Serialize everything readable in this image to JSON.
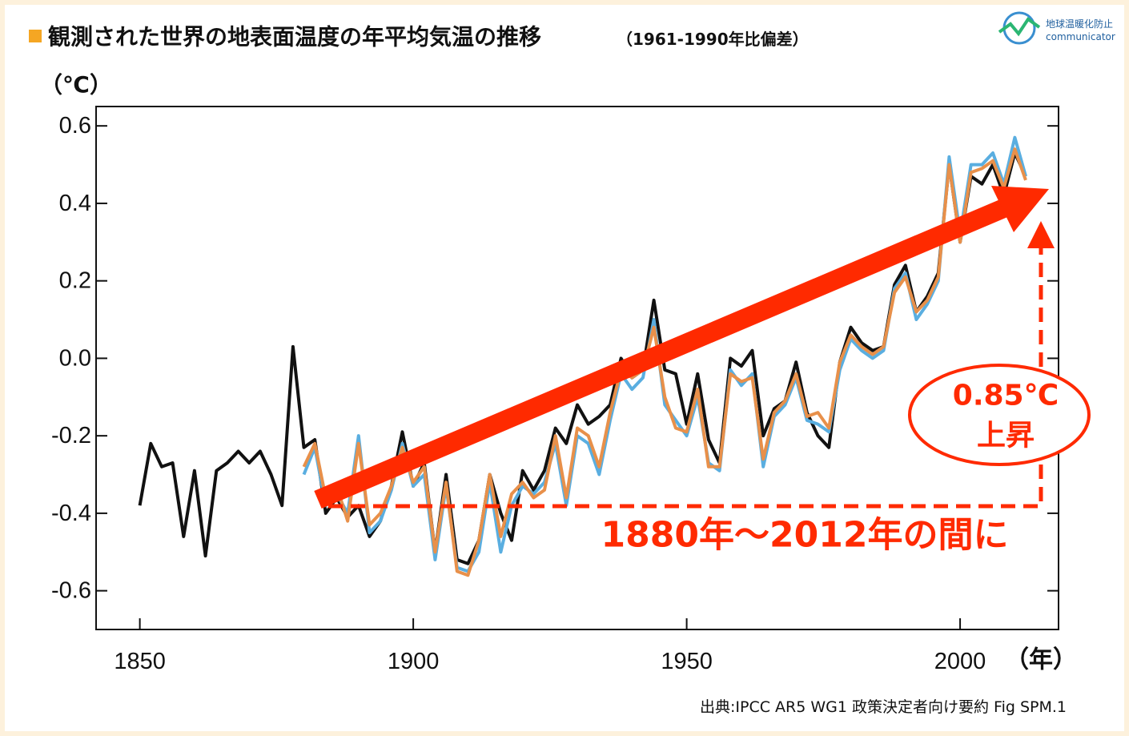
{
  "chart_data": {
    "type": "line",
    "title": "観測された世界の地表面温度の年平均気温の推移",
    "subtitle": "（1961-1990年比偏差）",
    "y_label": "（℃）",
    "x_label": "（年）",
    "source": "出典:IPCC AR5 WG1 政策決定者向け要約 Fig SPM.1",
    "annotations": [
      "0.85℃",
      "上昇",
      "1880年～2012年の間に"
    ],
    "xlim": [
      1842,
      2018
    ],
    "ylim": [
      -0.7,
      0.65
    ],
    "xticks": [
      1850,
      1900,
      1950,
      2000
    ],
    "yticks": [
      -0.6,
      -0.4,
      -0.2,
      {
        "value": 0,
        "label": "0.0"
      },
      0.2,
      0.4,
      0.6
    ],
    "x": [
      1850,
      1852,
      1854,
      1856,
      1858,
      1860,
      1862,
      1864,
      1866,
      1868,
      1870,
      1872,
      1874,
      1876,
      1878,
      1880,
      1882,
      1884,
      1886,
      1888,
      1890,
      1892,
      1894,
      1896,
      1898,
      1900,
      1902,
      1904,
      1906,
      1908,
      1910,
      1912,
      1914,
      1916,
      1918,
      1920,
      1922,
      1924,
      1926,
      1928,
      1930,
      1932,
      1934,
      1936,
      1938,
      1940,
      1942,
      1944,
      1946,
      1948,
      1950,
      1952,
      1954,
      1956,
      1958,
      1960,
      1962,
      1964,
      1966,
      1968,
      1970,
      1972,
      1974,
      1976,
      1978,
      1980,
      1982,
      1984,
      1986,
      1988,
      1990,
      1992,
      1994,
      1996,
      1998,
      2000,
      2002,
      2004,
      2006,
      2008,
      2010,
      2012
    ],
    "series": [
      {
        "color": "#111111",
        "values": [
          -0.38,
          -0.22,
          -0.28,
          -0.27,
          -0.46,
          -0.29,
          -0.51,
          -0.29,
          -0.27,
          -0.24,
          -0.27,
          -0.24,
          -0.3,
          -0.38,
          0.03,
          -0.23,
          -0.21,
          -0.4,
          -0.36,
          -0.41,
          -0.38,
          -0.46,
          -0.42,
          -0.33,
          -0.19,
          -0.33,
          -0.27,
          -0.5,
          -0.3,
          -0.52,
          -0.53,
          -0.47,
          -0.3,
          -0.4,
          -0.47,
          -0.29,
          -0.34,
          -0.29,
          -0.18,
          -0.22,
          -0.12,
          -0.17,
          -0.15,
          -0.12,
          0.0,
          -0.05,
          -0.03,
          0.15,
          -0.03,
          -0.04,
          -0.17,
          -0.04,
          -0.21,
          -0.27,
          0.0,
          -0.02,
          0.02,
          -0.2,
          -0.13,
          -0.11,
          -0.01,
          -0.14,
          -0.2,
          -0.23,
          -0.01,
          0.08,
          0.04,
          0.02,
          0.03,
          0.19,
          0.24,
          0.12,
          0.16,
          0.22,
          0.5,
          0.3,
          0.47,
          0.45,
          0.5,
          0.42,
          0.53,
          0.47
        ]
      },
      {
        "color": "#5aaee0",
        "values": [
          null,
          null,
          null,
          null,
          null,
          null,
          null,
          null,
          null,
          null,
          null,
          null,
          null,
          null,
          null,
          -0.3,
          -0.23,
          -0.38,
          -0.35,
          -0.4,
          -0.2,
          -0.45,
          -0.42,
          -0.34,
          -0.22,
          -0.33,
          -0.3,
          -0.52,
          -0.33,
          -0.54,
          -0.55,
          -0.5,
          -0.32,
          -0.5,
          -0.38,
          -0.33,
          -0.35,
          -0.32,
          -0.22,
          -0.38,
          -0.2,
          -0.22,
          -0.3,
          -0.16,
          -0.04,
          -0.08,
          -0.05,
          0.1,
          -0.12,
          -0.16,
          -0.2,
          -0.1,
          -0.27,
          -0.29,
          -0.03,
          -0.07,
          -0.04,
          -0.28,
          -0.15,
          -0.12,
          -0.05,
          -0.16,
          -0.17,
          -0.19,
          -0.03,
          0.05,
          0.02,
          0.0,
          0.02,
          0.18,
          0.22,
          0.1,
          0.14,
          0.2,
          0.52,
          0.32,
          0.5,
          0.5,
          0.53,
          0.45,
          0.57,
          0.47
        ]
      },
      {
        "color": "#e8904a",
        "values": [
          null,
          null,
          null,
          null,
          null,
          null,
          null,
          null,
          null,
          null,
          null,
          null,
          null,
          null,
          null,
          -0.28,
          -0.22,
          -0.36,
          -0.33,
          -0.42,
          -0.22,
          -0.43,
          -0.4,
          -0.33,
          -0.23,
          -0.32,
          -0.28,
          -0.5,
          -0.32,
          -0.55,
          -0.56,
          -0.47,
          -0.3,
          -0.46,
          -0.35,
          -0.32,
          -0.36,
          -0.34,
          -0.2,
          -0.36,
          -0.18,
          -0.2,
          -0.28,
          -0.14,
          -0.03,
          -0.05,
          -0.03,
          0.08,
          -0.1,
          -0.18,
          -0.19,
          -0.08,
          -0.28,
          -0.28,
          -0.04,
          -0.06,
          -0.05,
          -0.26,
          -0.14,
          -0.11,
          -0.04,
          -0.15,
          -0.14,
          -0.18,
          -0.01,
          0.06,
          0.03,
          0.01,
          0.03,
          0.17,
          0.21,
          0.12,
          0.15,
          0.21,
          0.5,
          0.3,
          0.48,
          0.49,
          0.51,
          0.44,
          0.54,
          0.46
        ]
      }
    ]
  },
  "logo": [
    "地球温暖化防止",
    "communicator"
  ]
}
